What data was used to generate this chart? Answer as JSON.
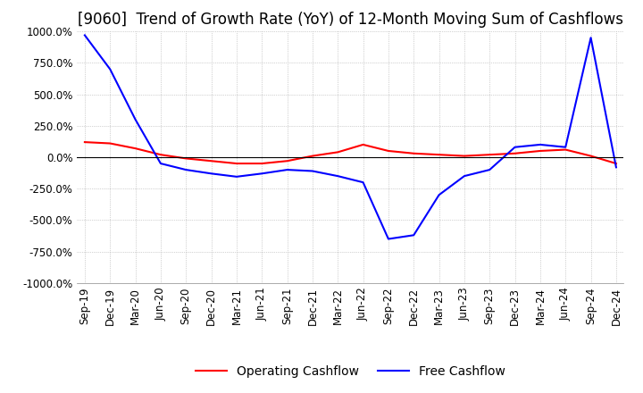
{
  "title": "[9060]  Trend of Growth Rate (YoY) of 12-Month Moving Sum of Cashflows",
  "ylim": [
    -1000,
    1000
  ],
  "yticks": [
    1000,
    750,
    500,
    250,
    0,
    -250,
    -500,
    -750,
    -1000
  ],
  "x_labels": [
    "Sep-19",
    "Dec-19",
    "Mar-20",
    "Jun-20",
    "Sep-20",
    "Dec-20",
    "Mar-21",
    "Jun-21",
    "Sep-21",
    "Dec-21",
    "Mar-22",
    "Jun-22",
    "Sep-22",
    "Dec-22",
    "Mar-23",
    "Jun-23",
    "Sep-23",
    "Dec-23",
    "Mar-24",
    "Jun-24",
    "Sep-24",
    "Dec-24"
  ],
  "operating_cashflow": [
    120,
    110,
    70,
    20,
    -10,
    -30,
    -50,
    -50,
    -30,
    10,
    40,
    100,
    50,
    30,
    20,
    10,
    20,
    30,
    50,
    60,
    10,
    -50
  ],
  "free_cashflow": [
    970,
    700,
    300,
    -50,
    -100,
    -130,
    -155,
    -130,
    -100,
    -110,
    -150,
    -200,
    -650,
    -620,
    -300,
    -150,
    -100,
    80,
    100,
    80,
    950,
    -80
  ],
  "operating_color": "#ff0000",
  "free_color": "#0000ff",
  "background_color": "#ffffff",
  "grid_color": "#aaaaaa",
  "title_fontsize": 12,
  "tick_fontsize": 8.5,
  "legend_fontsize": 10
}
